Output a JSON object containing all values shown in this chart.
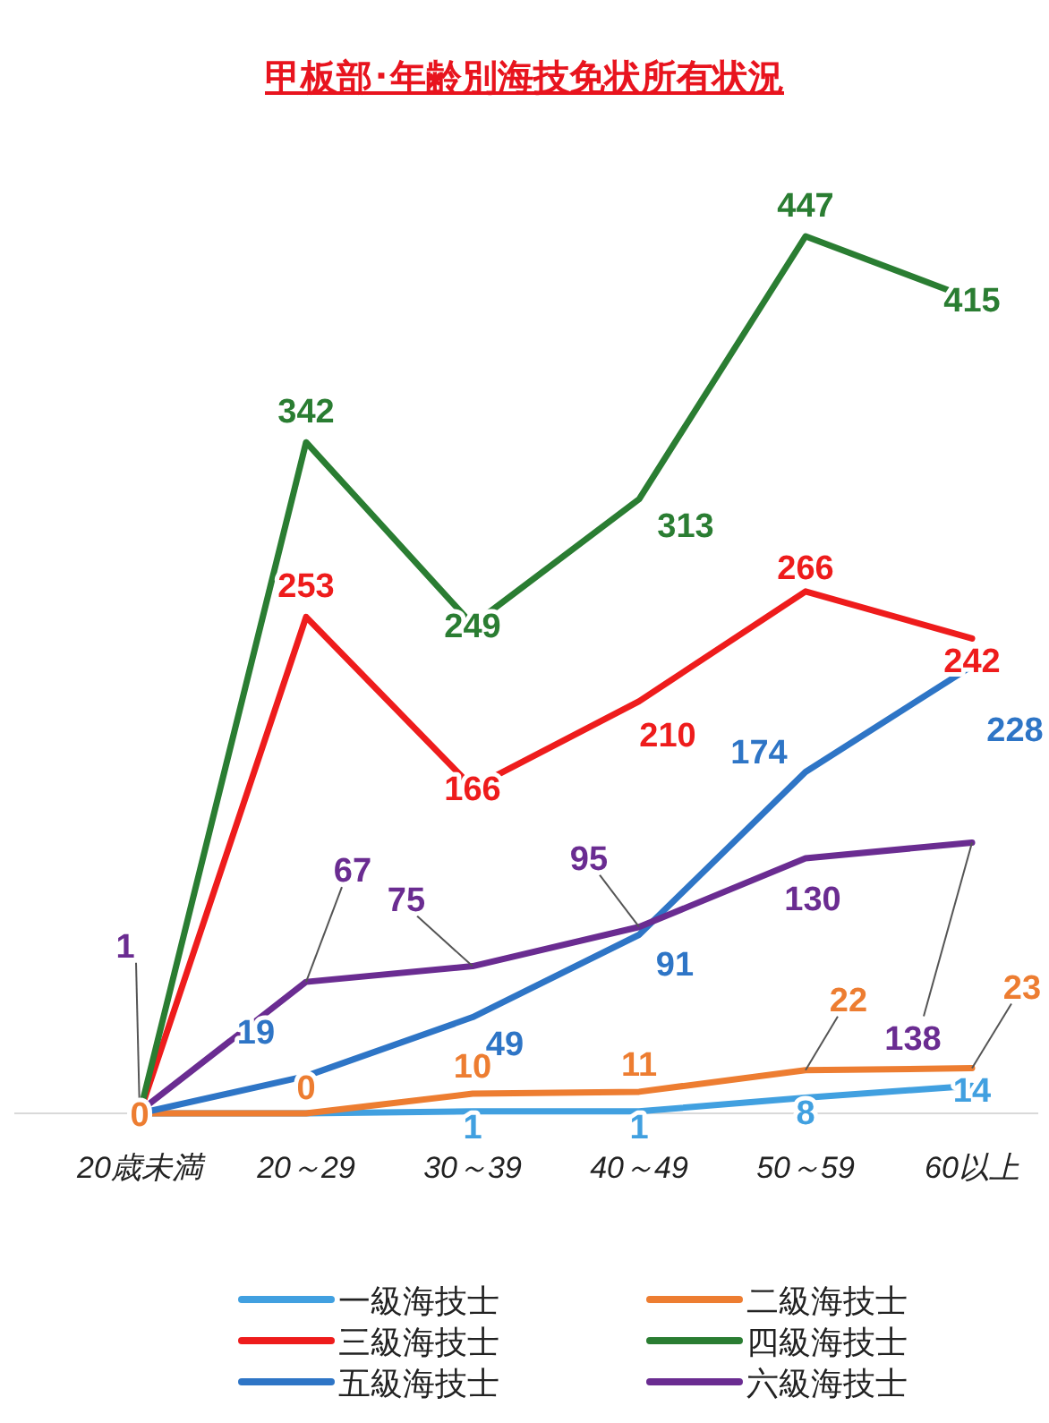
{
  "chart_data": {
    "type": "line",
    "title": "甲板部･年齢別海技免状所有状況",
    "categories": [
      "20歳未満",
      "20～29",
      "30～39",
      "40～49",
      "50～59",
      "60以上"
    ],
    "series": [
      {
        "name": "一級海技士",
        "color": "#41a0e0",
        "values": [
          0,
          0,
          1,
          1,
          8,
          14
        ],
        "value_labels": [
          null,
          null,
          "1",
          "1",
          "8",
          "14"
        ]
      },
      {
        "name": "二級海技士",
        "color": "#ed7d31",
        "values": [
          0,
          0,
          10,
          11,
          22,
          23
        ],
        "value_labels": [
          "0",
          "0",
          "10",
          "11",
          "22",
          "23"
        ]
      },
      {
        "name": "三級海技士",
        "color": "#ee1c1c",
        "values": [
          0,
          253,
          166,
          210,
          266,
          242
        ],
        "value_labels": [
          null,
          "253",
          "166",
          "210",
          "266",
          "242"
        ]
      },
      {
        "name": "四級海技士",
        "color": "#2a7d32",
        "values": [
          0,
          342,
          249,
          313,
          447,
          415
        ],
        "value_labels": [
          null,
          "342",
          "249",
          "313",
          "447",
          "415"
        ]
      },
      {
        "name": "五級海技士",
        "color": "#2e75c6",
        "values": [
          0,
          19,
          49,
          91,
          174,
          228
        ],
        "value_labels": [
          null,
          "19",
          "49",
          "91",
          "174",
          "228"
        ]
      },
      {
        "name": "六級海技士",
        "color": "#6a2c91",
        "values": [
          1,
          67,
          75,
          95,
          130,
          138
        ],
        "value_labels": [
          "1",
          "67",
          "75",
          "95",
          "130",
          "138"
        ]
      }
    ],
    "legend": "bottom",
    "marker": "none",
    "line_style": "solid"
  }
}
